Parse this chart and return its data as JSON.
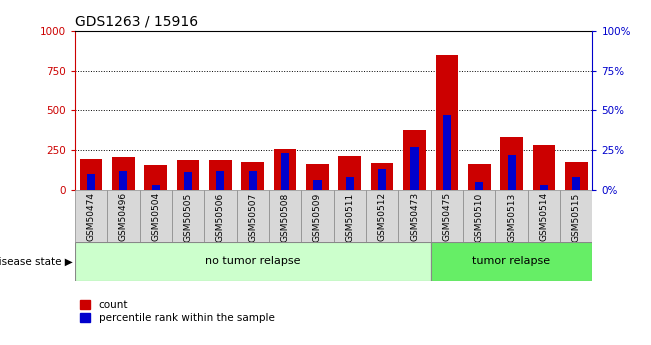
{
  "title": "GDS1263 / 15916",
  "samples": [
    "GSM50474",
    "GSM50496",
    "GSM50504",
    "GSM50505",
    "GSM50506",
    "GSM50507",
    "GSM50508",
    "GSM50509",
    "GSM50511",
    "GSM50512",
    "GSM50473",
    "GSM50475",
    "GSM50510",
    "GSM50513",
    "GSM50514",
    "GSM50515"
  ],
  "count": [
    195,
    205,
    155,
    190,
    185,
    175,
    255,
    160,
    215,
    170,
    375,
    850,
    160,
    335,
    280,
    175
  ],
  "percentile": [
    10,
    12,
    3,
    11,
    12,
    12,
    23,
    6,
    8,
    13,
    27,
    47,
    5,
    22,
    3,
    8
  ],
  "no_tumor_count": 11,
  "tumor_count": 5,
  "group_labels": [
    "no tumor relapse",
    "tumor relapse"
  ],
  "group_color_light": "#ccffcc",
  "group_color_dark": "#66ee66",
  "left_axis_color": "#cc0000",
  "right_axis_color": "#0000cc",
  "bar_color_count": "#cc0000",
  "bar_color_percentile": "#0000cc",
  "ylim_left": [
    0,
    1000
  ],
  "ylim_right": [
    0,
    100
  ],
  "yticks_left": [
    0,
    250,
    500,
    750,
    1000
  ],
  "yticks_right": [
    0,
    25,
    50,
    75,
    100
  ],
  "ytick_labels_right": [
    "0%",
    "25%",
    "50%",
    "75%",
    "100%"
  ],
  "disease_state_label": "disease state",
  "legend_count_label": "count",
  "legend_percentile_label": "percentile rank within the sample",
  "bar_width": 0.7,
  "pct_bar_width": 0.25
}
